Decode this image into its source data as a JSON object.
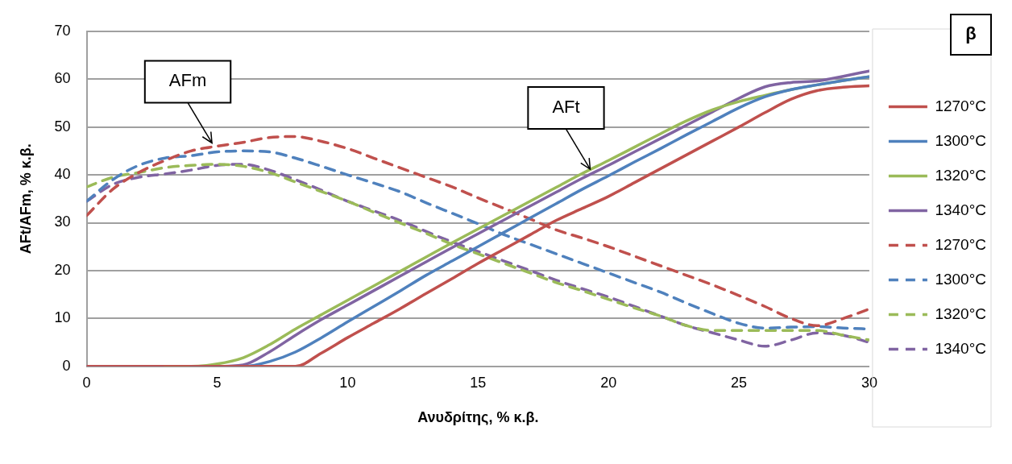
{
  "chart_data": {
    "type": "line",
    "xlabel": "Ανυδρίτης, % κ.β.",
    "ylabel": "AFt/AFm, % κ.β.",
    "x": [
      0,
      1,
      2,
      3,
      4,
      5,
      6,
      7,
      8,
      9,
      10,
      11,
      12,
      13,
      14,
      15,
      16,
      17,
      18,
      19,
      20,
      21,
      22,
      23,
      24,
      25,
      26,
      27,
      28,
      29,
      30
    ],
    "xlim": [
      0,
      30
    ],
    "xticks": [
      0,
      5,
      10,
      15,
      20,
      25,
      30
    ],
    "ylim": [
      0,
      70
    ],
    "yticks": [
      0,
      10,
      20,
      30,
      40,
      50,
      60,
      70
    ],
    "grid": "y",
    "legend": "right",
    "marker": "none",
    "annotations": [
      "β",
      {
        "text": "AFm",
        "x": 4.8,
        "y": 46
      },
      {
        "text": "AFt",
        "x": 19.3,
        "y": 40.5
      }
    ],
    "series": [
      {
        "name": "1270°C",
        "color": "#c0504d",
        "line_style": "solid",
        "values": [
          0,
          0,
          0,
          0,
          0,
          0,
          0,
          0,
          0,
          2.8,
          6,
          9,
          12,
          15.2,
          18.3,
          21.5,
          24.5,
          27.5,
          30.5,
          33,
          35.5,
          38.4,
          41.3,
          44.2,
          47.1,
          50,
          53,
          55.8,
          57.6,
          58.3,
          58.6
        ]
      },
      {
        "name": "1300°C",
        "color": "#4f81bd",
        "line_style": "solid",
        "values": [
          null,
          null,
          null,
          null,
          0,
          0,
          0,
          1,
          3,
          6,
          9.3,
          12.5,
          15.7,
          19,
          22,
          25,
          28,
          31,
          34,
          37,
          39.8,
          42.7,
          45.5,
          48.4,
          51.2,
          54,
          56.3,
          57.8,
          58.8,
          59.7,
          60.5
        ]
      },
      {
        "name": "1320°C",
        "color": "#9bbb59",
        "line_style": "solid",
        "values": [
          null,
          null,
          null,
          0,
          0,
          0.5,
          1.8,
          4.5,
          7.8,
          10.8,
          13.8,
          16.8,
          19.8,
          22.8,
          25.8,
          28.7,
          31.6,
          34.5,
          37.4,
          40.3,
          43,
          45.8,
          48.6,
          51.3,
          53.6,
          55.3,
          56.6,
          57.8,
          58.8,
          59.7,
          60.5
        ]
      },
      {
        "name": "1340°C",
        "color": "#8064a2",
        "line_style": "solid",
        "values": [
          0,
          0,
          0,
          0,
          0,
          0,
          0.3,
          3,
          6.5,
          9.8,
          12.8,
          15.8,
          18.8,
          21.8,
          24.8,
          27.7,
          30.6,
          33.5,
          36.4,
          39.3,
          42,
          44.8,
          47.6,
          50.4,
          53.2,
          56,
          58.4,
          59.3,
          59.6,
          60.6,
          61.7
        ]
      },
      {
        "name": "1270°C",
        "color": "#c0504d",
        "line_style": "dashed",
        "values": [
          31.5,
          37,
          40.5,
          43,
          45,
          46,
          46.8,
          47.8,
          48,
          47,
          45.5,
          43.5,
          41.5,
          39.5,
          37.5,
          35.2,
          33,
          30.8,
          28.5,
          26.8,
          25,
          23,
          21,
          19,
          17,
          14.8,
          12.5,
          10,
          8.5,
          10,
          12
        ]
      },
      {
        "name": "1300°C",
        "color": "#4f81bd",
        "line_style": "dashed",
        "values": [
          34.5,
          39,
          42,
          43.5,
          44,
          44.8,
          45,
          44.8,
          43.5,
          41.8,
          40,
          38.3,
          36.5,
          34.2,
          32,
          29.8,
          27.5,
          25.5,
          23.5,
          21.5,
          19.5,
          17.5,
          15.5,
          13.2,
          11,
          9,
          8,
          8.2,
          8.3,
          8,
          7.8
        ]
      },
      {
        "name": "1320°C",
        "color": "#9bbb59",
        "line_style": "dashed",
        "values": [
          37.5,
          39.5,
          40.5,
          41.5,
          42,
          42.2,
          41.8,
          40.5,
          38.5,
          36.5,
          34.5,
          32.2,
          30,
          27.8,
          25.5,
          23.5,
          21.5,
          19.5,
          17.5,
          15.8,
          14,
          12.2,
          10.5,
          8.5,
          7.5,
          7.5,
          7.5,
          7.5,
          7.5,
          6.5,
          5.5
        ]
      },
      {
        "name": "1340°C",
        "color": "#8064a2",
        "line_style": "dashed",
        "values": [
          34.5,
          38,
          39.5,
          40.2,
          41,
          42,
          42.2,
          41,
          39,
          36.8,
          34.5,
          32.5,
          30.5,
          28.2,
          26,
          24,
          22,
          20,
          18,
          16.2,
          14.5,
          12.5,
          10.5,
          8.5,
          7,
          5.5,
          4.2,
          5.5,
          7,
          6.5,
          5
        ]
      }
    ]
  }
}
